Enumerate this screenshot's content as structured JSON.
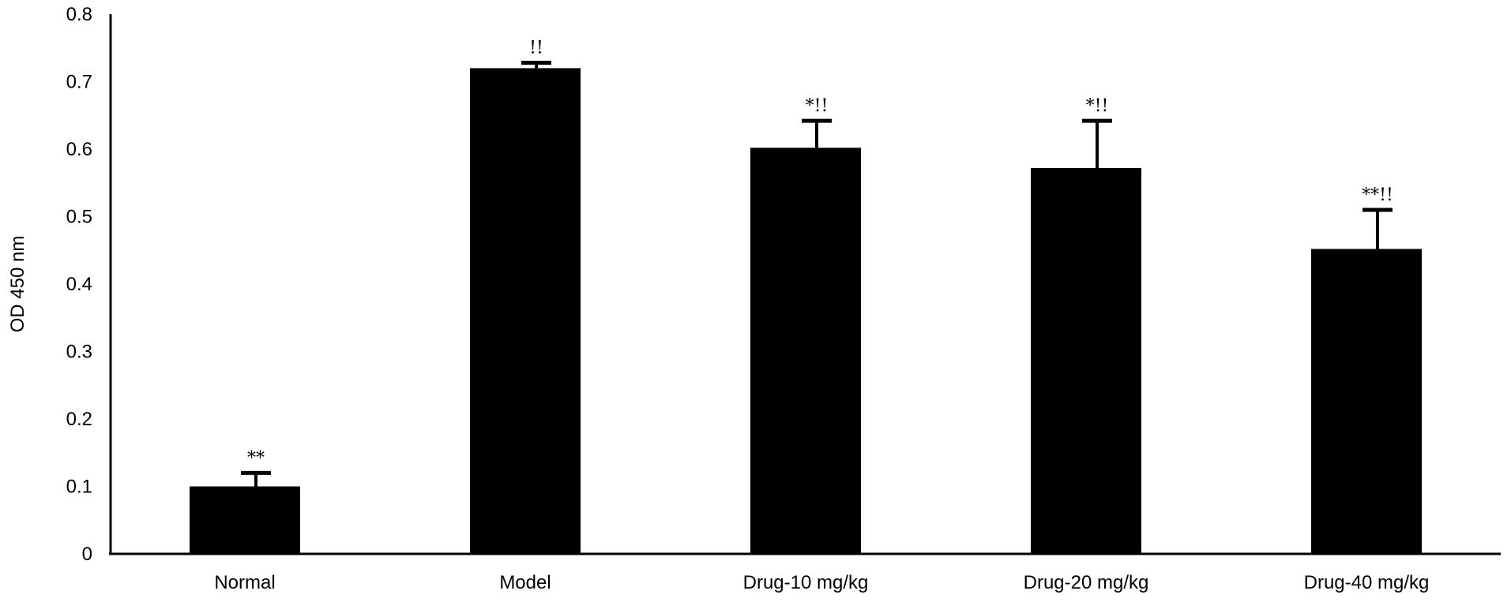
{
  "chart_data": {
    "type": "bar",
    "title": "",
    "xlabel": "",
    "ylabel": "OD 450 nm",
    "ylim": [
      0,
      0.8
    ],
    "yticks": [
      "0",
      "0.1",
      "0.2",
      "0.3",
      "0.4",
      "0.5",
      "0.6",
      "0.7",
      "0.8"
    ],
    "categories": [
      "Normal",
      "Model",
      "Drug-10 mg/kg",
      "Drug-20 mg/kg",
      "Drug-40 mg/kg"
    ],
    "series": [
      {
        "values": [
          0.1,
          0.72,
          0.602,
          0.572,
          0.452
        ],
        "errors": [
          0.02,
          0.008,
          0.04,
          0.07,
          0.058
        ],
        "annotations": [
          "**",
          "!!",
          "*!!",
          "*!!",
          "**!!"
        ]
      }
    ],
    "grid": false,
    "bar_color": "#000000"
  }
}
